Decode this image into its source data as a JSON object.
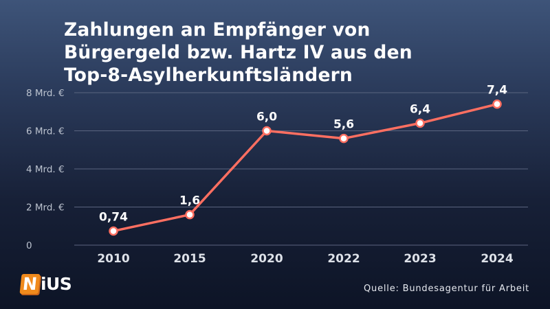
{
  "title_lines": [
    "Zahlungen an Empfänger von",
    "Bürgergeld bzw. Hartz IV aus den",
    "Top-8-Asylherkunftsländern"
  ],
  "source": "Quelle: Bundesagentur für Arbeit",
  "logo": {
    "first_letter": "N",
    "rest": "iUS",
    "accent_color": "#f08a1c"
  },
  "colors": {
    "line": "#ff6f61",
    "grid": "#5b6580",
    "background_top": "#3e5479",
    "background_bottom": "#0d1426"
  },
  "chart_data": {
    "type": "line",
    "title": "Zahlungen an Empfänger von Bürgergeld bzw. Hartz IV aus den Top-8-Asylherkunftsländern",
    "categories": [
      "2010",
      "2015",
      "2020",
      "2022",
      "2023",
      "2024"
    ],
    "series": [
      {
        "values": [
          0.74,
          1.6,
          6.0,
          5.6,
          6.4,
          7.4
        ]
      }
    ],
    "data_labels": [
      "0,74",
      "1,6",
      "6,0",
      "5,6",
      "6,4",
      "7,4"
    ],
    "y_ticks": [
      {
        "value": 0,
        "label": "0"
      },
      {
        "value": 2,
        "label": "2 Mrd. €"
      },
      {
        "value": 4,
        "label": "4 Mrd. €"
      },
      {
        "value": 6,
        "label": "6 Mrd. €"
      },
      {
        "value": 8,
        "label": "8 Mrd. €"
      }
    ],
    "ylim": [
      0,
      8
    ],
    "xlabel": "",
    "ylabel": "",
    "grid": true,
    "legend": "none"
  }
}
